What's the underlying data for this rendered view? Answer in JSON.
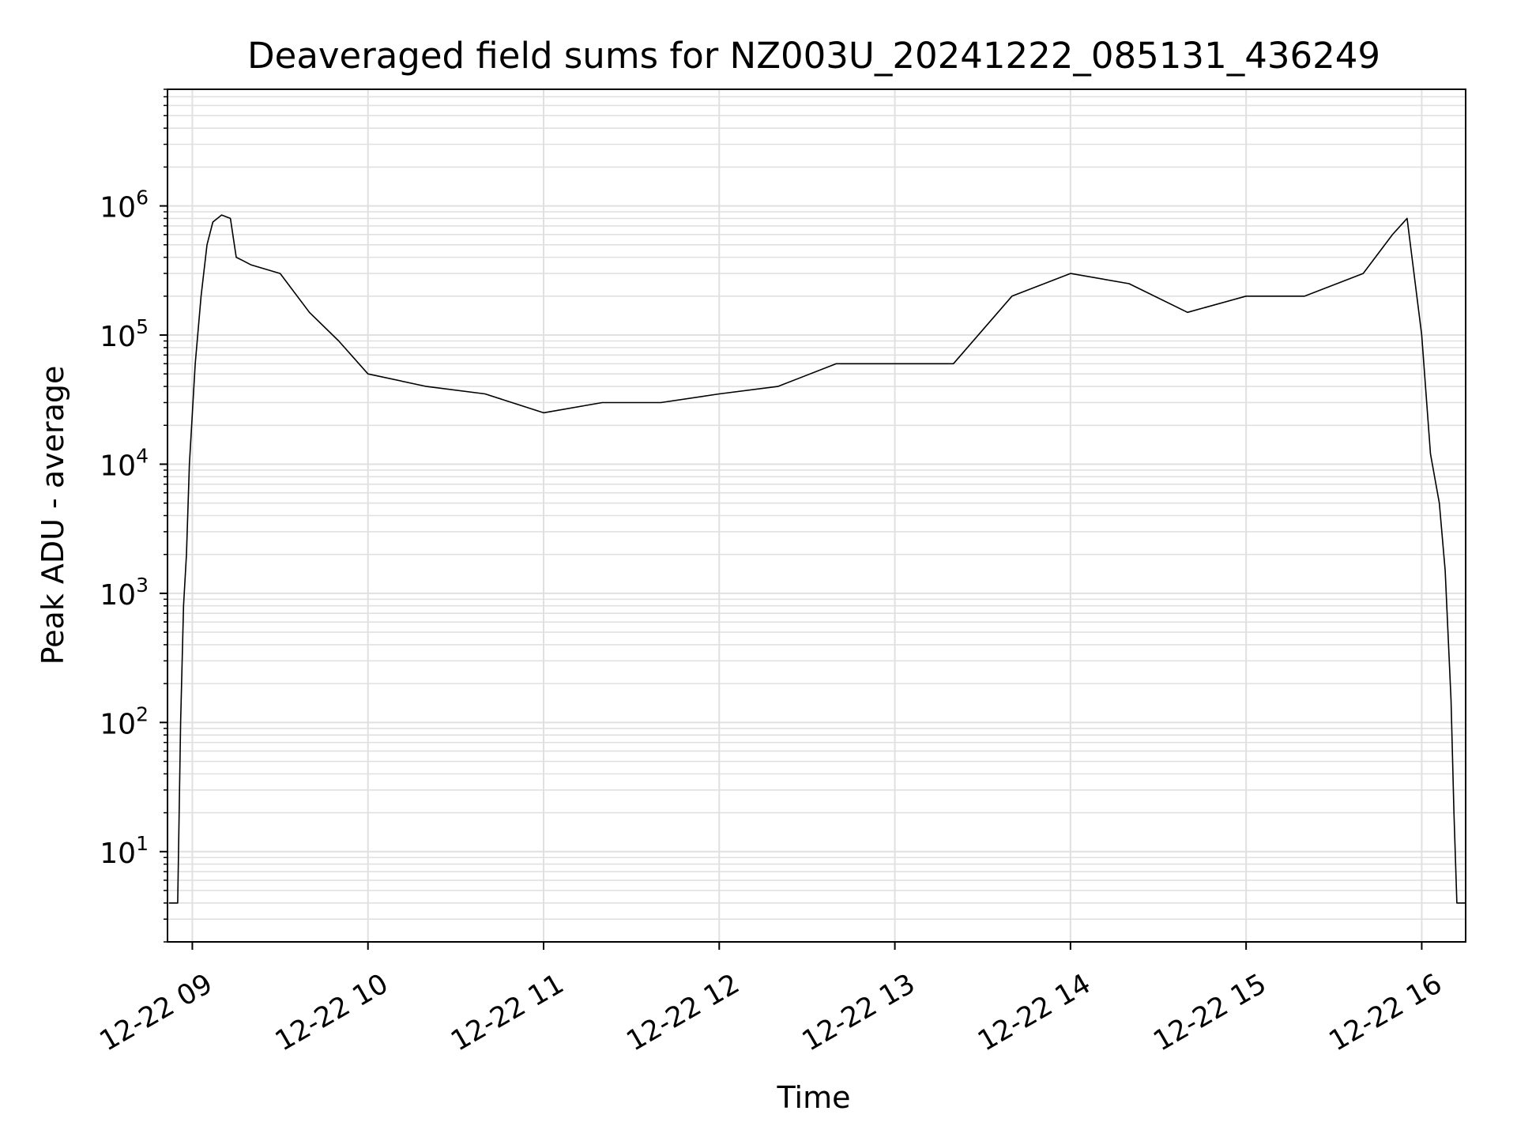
{
  "chart_data": {
    "type": "line",
    "title": "Deaveraged field sums for NZ003U_20241222_085131_436249",
    "xlabel": "Time",
    "ylabel": "Peak ADU - average",
    "yscale": "log",
    "ylim": [
      2,
      8000000
    ],
    "xlim": [
      "2024-12-22T08:51:31",
      "2024-12-22T16:15:00"
    ],
    "grid": true,
    "grid_minor": true,
    "line_color": "#000000",
    "grid_color": "#e0e0e0",
    "xtick_labels": [
      "12-22 09",
      "12-22 10",
      "12-22 11",
      "12-22 12",
      "12-22 13",
      "12-22 14",
      "12-22 15",
      "12-22 16"
    ],
    "xtick_times": [
      "2024-12-22T09:00",
      "2024-12-22T10:00",
      "2024-12-22T11:00",
      "2024-12-22T12:00",
      "2024-12-22T13:00",
      "2024-12-22T14:00",
      "2024-12-22T15:00",
      "2024-12-22T16:00"
    ],
    "ytick_values": [
      10,
      100,
      1000,
      10000,
      100000,
      1000000
    ],
    "ytick_labels": [
      {
        "base": "10",
        "exp": "1"
      },
      {
        "base": "10",
        "exp": "2"
      },
      {
        "base": "10",
        "exp": "3"
      },
      {
        "base": "10",
        "exp": "4"
      },
      {
        "base": "10",
        "exp": "5"
      },
      {
        "base": "10",
        "exp": "6"
      }
    ],
    "series": [
      {
        "x": [
          "2024-12-22T08:52",
          "2024-12-22T08:54",
          "2024-12-22T08:55",
          "2024-12-22T08:56",
          "2024-12-22T08:57",
          "2024-12-22T08:58",
          "2024-12-22T08:59",
          "2024-12-22T09:01",
          "2024-12-22T09:03",
          "2024-12-22T09:05",
          "2024-12-22T09:07",
          "2024-12-22T09:10",
          "2024-12-22T09:13",
          "2024-12-22T09:15",
          "2024-12-22T09:17",
          "2024-12-22T09:20",
          "2024-12-22T09:30",
          "2024-12-22T09:40",
          "2024-12-22T09:50",
          "2024-12-22T10:00",
          "2024-12-22T10:20",
          "2024-12-22T10:40",
          "2024-12-22T11:00",
          "2024-12-22T11:20",
          "2024-12-22T11:40",
          "2024-12-22T12:00",
          "2024-12-22T12:20",
          "2024-12-22T12:40",
          "2024-12-22T13:00",
          "2024-12-22T13:20",
          "2024-12-22T13:40",
          "2024-12-22T14:00",
          "2024-12-22T14:20",
          "2024-12-22T14:40",
          "2024-12-22T15:00",
          "2024-12-22T15:20",
          "2024-12-22T15:40",
          "2024-12-22T15:50",
          "2024-12-22T15:55",
          "2024-12-22T16:00",
          "2024-12-22T16:03",
          "2024-12-22T16:06",
          "2024-12-22T16:08",
          "2024-12-22T16:10",
          "2024-12-22T16:11",
          "2024-12-22T16:12",
          "2024-12-22T16:15"
        ],
        "y": [
          4,
          4,
          4,
          100,
          800,
          2000,
          10000,
          60000,
          200000,
          500000,
          750000,
          850000,
          800000,
          400000,
          380000,
          350000,
          300000,
          150000,
          90000,
          50000,
          40000,
          35000,
          25000,
          30000,
          30000,
          35000,
          40000,
          60000,
          60000,
          60000,
          200000,
          300000,
          250000,
          150000,
          200000,
          200000,
          300000,
          600000,
          800000,
          100000,
          12000,
          5000,
          1500,
          150,
          20,
          4,
          4
        ]
      }
    ]
  }
}
